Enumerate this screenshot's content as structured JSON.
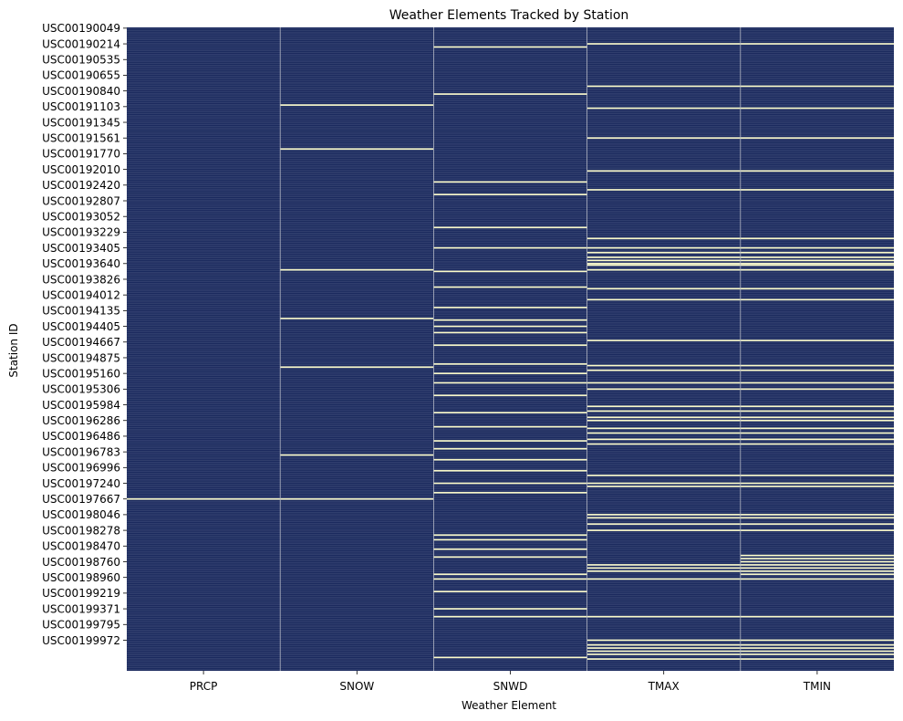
{
  "chart_data": {
    "type": "heatmap",
    "title": "Weather Elements Tracked by Station",
    "xlabel": "Weather Element",
    "ylabel": "Station ID",
    "columns": [
      "PRCP",
      "SNOW",
      "SNWD",
      "TMAX",
      "TMIN"
    ],
    "row_count": 410,
    "y_tick_labels": [
      "USC00190049",
      "USC00190214",
      "USC00190535",
      "USC00190655",
      "USC00190840",
      "USC00191103",
      "USC00191345",
      "USC00191561",
      "USC00191770",
      "USC00192010",
      "USC00192420",
      "USC00192807",
      "USC00193052",
      "USC00193229",
      "USC00193405",
      "USC00193640",
      "USC00193826",
      "USC00194012",
      "USC00194135",
      "USC00194405",
      "USC00194667",
      "USC00194875",
      "USC00195160",
      "USC00195306",
      "USC00195984",
      "USC00196286",
      "USC00196486",
      "USC00196783",
      "USC00196996",
      "USC00197240",
      "USC00197667",
      "USC00198046",
      "USC00198278",
      "USC00198470",
      "USC00198760",
      "USC00198960",
      "USC00199219",
      "USC00199371",
      "USC00199795",
      "USC00199972"
    ],
    "y_tick_interval": 10,
    "value_encoding": {
      "1": "tracked",
      "0": "not tracked"
    },
    "default_value": 1,
    "missing_rows": {
      "PRCP": [
        300
      ],
      "SNOW": [
        49,
        77,
        154,
        185,
        216,
        272,
        300
      ],
      "SNWD": [
        12,
        42,
        98,
        106,
        127,
        140,
        155,
        165,
        178,
        186,
        190,
        194,
        202,
        214,
        220,
        226,
        234,
        245,
        254,
        263,
        268,
        275,
        282,
        290,
        296,
        323,
        326,
        332,
        337,
        348,
        351,
        359,
        370,
        375,
        401
      ],
      "TMAX": [
        10,
        37,
        51,
        70,
        91,
        103,
        134,
        140,
        143,
        146,
        148,
        150,
        151,
        154,
        166,
        173,
        199,
        215,
        218,
        226,
        230,
        241,
        244,
        248,
        250,
        255,
        258,
        262,
        265,
        285,
        290,
        292,
        310,
        312,
        316,
        320,
        342,
        344,
        346,
        351,
        375,
        390,
        393,
        395,
        397,
        399,
        402
      ],
      "TMIN": [
        10,
        37,
        51,
        70,
        91,
        103,
        134,
        140,
        143,
        146,
        148,
        150,
        151,
        154,
        166,
        173,
        199,
        215,
        218,
        226,
        230,
        241,
        244,
        248,
        250,
        255,
        258,
        262,
        265,
        285,
        290,
        292,
        310,
        312,
        316,
        320,
        336,
        338,
        340,
        342,
        344,
        346,
        348,
        351,
        375,
        390,
        393,
        395,
        397,
        399,
        402
      ]
    },
    "colors": {
      "tracked": "#1b2a5e",
      "not_tracked": "#fdfdc9",
      "row_line": "#8d96b4",
      "column_line": "#b4b8c4"
    }
  }
}
